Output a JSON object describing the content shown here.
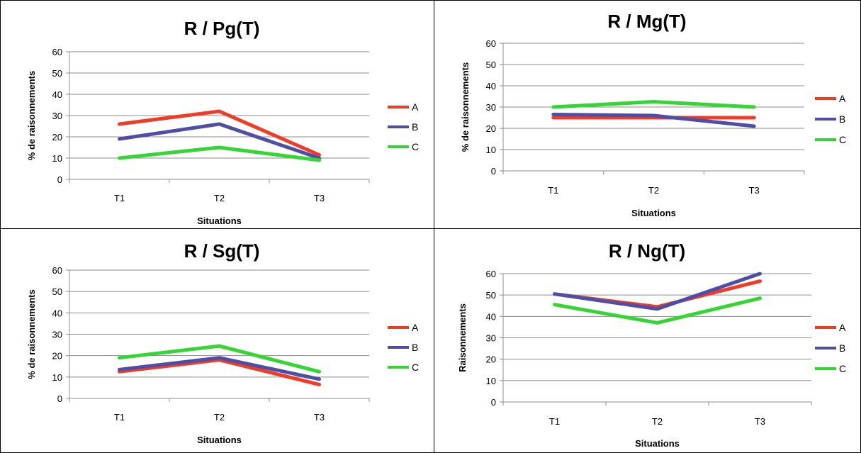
{
  "colors": {
    "A": "#f03c24",
    "B": "#4e4ea8",
    "C": "#33d633"
  },
  "chart_data": [
    {
      "type": "line",
      "title": "R / Pg(T)",
      "xlabel": "Situations",
      "ylabel": "% de raisonnements",
      "categories": [
        "T1",
        "T2",
        "T3"
      ],
      "ylim": [
        0,
        60
      ],
      "yticks": [
        "0",
        "10",
        "20",
        "30",
        "40",
        "50",
        "60"
      ],
      "grid": true,
      "legend_position": "right",
      "series": [
        {
          "name": "A",
          "values": [
            26,
            32,
            11.5
          ]
        },
        {
          "name": "B",
          "values": [
            19,
            26,
            10
          ]
        },
        {
          "name": "C",
          "values": [
            10,
            15,
            9
          ]
        }
      ]
    },
    {
      "type": "line",
      "title": "R / Mg(T)",
      "xlabel": "Situations",
      "ylabel": "% de raisonnements",
      "categories": [
        "T1",
        "T2",
        "T3"
      ],
      "ylim": [
        0,
        60
      ],
      "yticks": [
        "0",
        "10",
        "20",
        "30",
        "40",
        "50",
        "60"
      ],
      "grid": true,
      "legend_position": "right",
      "series": [
        {
          "name": "A",
          "values": [
            25,
            25,
            25
          ]
        },
        {
          "name": "B",
          "values": [
            26.5,
            26,
            21
          ]
        },
        {
          "name": "C",
          "values": [
            30,
            32.5,
            30
          ]
        }
      ]
    },
    {
      "type": "line",
      "title": "R / Sg(T)",
      "xlabel": "Situations",
      "ylabel": "% de raisonnements",
      "categories": [
        "T1",
        "T2",
        "T3"
      ],
      "ylim": [
        0,
        60
      ],
      "yticks": [
        "0",
        "10",
        "20",
        "30",
        "40",
        "50",
        "60"
      ],
      "grid": true,
      "legend_position": "right",
      "series": [
        {
          "name": "A",
          "values": [
            12.5,
            18,
            6.5
          ]
        },
        {
          "name": "B",
          "values": [
            13.5,
            19,
            9
          ]
        },
        {
          "name": "C",
          "values": [
            19,
            24.5,
            12.5
          ]
        }
      ]
    },
    {
      "type": "line",
      "title": "R / Ng(T)",
      "xlabel": "Situations",
      "ylabel": "Raisonnements",
      "categories": [
        "T1",
        "T2",
        "T3"
      ],
      "ylim": [
        0,
        60
      ],
      "yticks": [
        "0",
        "10",
        "20",
        "30",
        "40",
        "50",
        "60"
      ],
      "grid": true,
      "legend_position": "right",
      "series": [
        {
          "name": "A",
          "values": [
            50.5,
            44.5,
            56.5
          ]
        },
        {
          "name": "B",
          "values": [
            50.5,
            43.5,
            60
          ]
        },
        {
          "name": "C",
          "values": [
            45.5,
            37,
            48.5
          ]
        }
      ]
    }
  ]
}
